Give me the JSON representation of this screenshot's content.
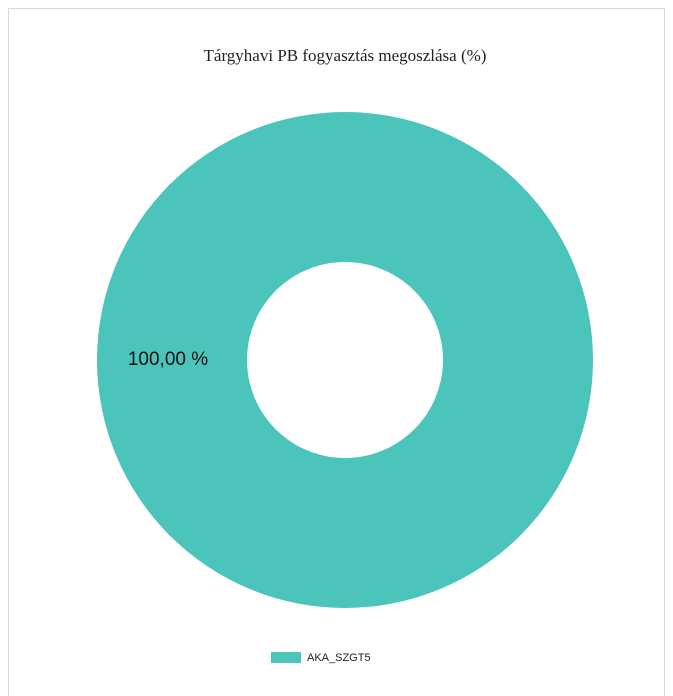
{
  "chart_data": {
    "type": "donut",
    "title": "Tárgyhavi PB fogyasztás megoszlása (%)",
    "categories": [
      "AKA_SZGT5"
    ],
    "values": [
      100
    ],
    "value_labels": [
      "100,00 %"
    ],
    "colors": [
      "#4bc4bb"
    ],
    "legend": "bottom"
  }
}
